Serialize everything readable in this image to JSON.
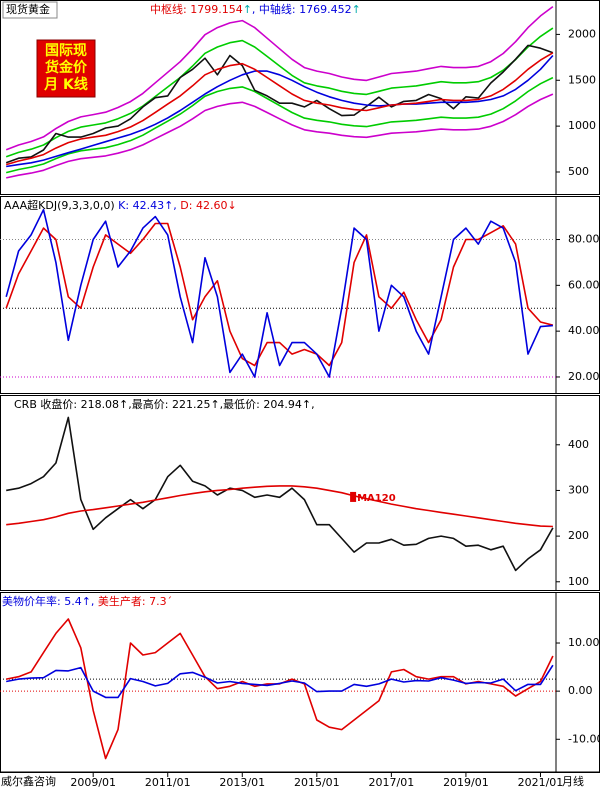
{
  "label": "现货黄金",
  "badge": [
    "国际现",
    "货金价",
    "月 K线"
  ],
  "source": "威尔鑫咨询",
  "period_label": "月线",
  "xlim": [
    "2006/07",
    "2021/06"
  ],
  "xticks": [
    "2009/01",
    "2011/01",
    "2013/01",
    "2015/01",
    "2017/01",
    "2019/01",
    "2021/01"
  ],
  "chart_data": [
    {
      "type": "line",
      "header": [
        {
          "text": "中枢线: 1799.154",
          "color": "#e00000"
        },
        {
          "text": "↑",
          "color": "#00aaaa"
        },
        {
          "text": ", 中轴线: 1769.452",
          "color": "#0000dd"
        },
        {
          "text": "↑",
          "color": "#00aaaa"
        }
      ],
      "x": [
        "2006/09",
        "2007/01",
        "2007/05",
        "2007/09",
        "2008/01",
        "2008/05",
        "2008/09",
        "2009/01",
        "2009/05",
        "2009/09",
        "2010/01",
        "2010/05",
        "2010/09",
        "2011/01",
        "2011/05",
        "2011/09",
        "2012/01",
        "2012/05",
        "2012/09",
        "2013/01",
        "2013/05",
        "2013/09",
        "2014/01",
        "2014/05",
        "2014/09",
        "2015/01",
        "2015/05",
        "2015/09",
        "2016/01",
        "2016/05",
        "2016/09",
        "2017/01",
        "2017/05",
        "2017/09",
        "2018/01",
        "2018/05",
        "2018/09",
        "2019/01",
        "2019/05",
        "2019/09",
        "2020/01",
        "2020/05",
        "2020/09",
        "2021/01",
        "2021/05"
      ],
      "ylim": [
        260,
        2375
      ],
      "yticks": [
        500,
        1000,
        1500,
        2000
      ],
      "series": [
        {
          "color": "#cc00cc",
          "values": [
            742,
            794,
            832,
            883,
            973,
            1050,
            1101,
            1126,
            1152,
            1203,
            1267,
            1357,
            1472,
            1587,
            1702,
            1843,
            1997,
            2074,
            2125,
            2150,
            2074,
            1958,
            1843,
            1728,
            1638,
            1600,
            1574,
            1536,
            1510,
            1498,
            1536,
            1574,
            1587,
            1600,
            1626,
            1651,
            1638,
            1638,
            1651,
            1702,
            1792,
            1920,
            2074,
            2202,
            2303
          ]
        },
        {
          "color": "#cc00cc",
          "values": [
            435,
            465,
            488,
            518,
            570,
            615,
            645,
            660,
            675,
            705,
            743,
            795,
            863,
            930,
            998,
            1080,
            1170,
            1215,
            1245,
            1260,
            1215,
            1148,
            1080,
            1013,
            960,
            938,
            923,
            900,
            885,
            878,
            900,
            923,
            930,
            938,
            953,
            968,
            960,
            960,
            968,
            998,
            1050,
            1125,
            1215,
            1290,
            1349
          ]
        },
        {
          "color": "#00cc00",
          "values": [
            667,
            713,
            748,
            794,
            874,
            943,
            989,
            1012,
            1035,
            1081,
            1139,
            1219,
            1323,
            1426,
            1530,
            1656,
            1794,
            1863,
            1909,
            1932,
            1863,
            1760,
            1656,
            1553,
            1472,
            1438,
            1415,
            1380,
            1357,
            1346,
            1380,
            1415,
            1426,
            1438,
            1461,
            1484,
            1472,
            1472,
            1484,
            1530,
            1610,
            1725,
            1863,
            1978,
            2069
          ]
        },
        {
          "color": "#00cc00",
          "values": [
            493,
            527,
            553,
            587,
            646,
            697,
            731,
            748,
            765,
            799,
            842,
            901,
            978,
            1054,
            1131,
            1224,
            1326,
            1377,
            1411,
            1428,
            1377,
            1301,
            1224,
            1148,
            1088,
            1063,
            1046,
            1020,
            1003,
            995,
            1020,
            1046,
            1054,
            1063,
            1080,
            1097,
            1088,
            1088,
            1097,
            1131,
            1190,
            1275,
            1377,
            1462,
            1529
          ]
        },
        {
          "color": "#111111",
          "values": [
            600,
            650,
            665,
            740,
            920,
            880,
            880,
            920,
            980,
            1000,
            1080,
            1210,
            1310,
            1330,
            1530,
            1620,
            1740,
            1560,
            1770,
            1660,
            1390,
            1330,
            1250,
            1250,
            1210,
            1280,
            1190,
            1115,
            1120,
            1215,
            1315,
            1210,
            1270,
            1280,
            1345,
            1300,
            1190,
            1320,
            1305,
            1470,
            1590,
            1730,
            1880,
            1850,
            1800
          ]
        },
        {
          "color": "#0000dd",
          "values": [
            560,
            580,
            600,
            630,
            670,
            710,
            750,
            790,
            830,
            870,
            910,
            960,
            1020,
            1090,
            1170,
            1260,
            1350,
            1430,
            1500,
            1560,
            1600,
            1600,
            1560,
            1500,
            1430,
            1370,
            1320,
            1280,
            1250,
            1230,
            1220,
            1230,
            1240,
            1240,
            1250,
            1260,
            1260,
            1260,
            1270,
            1290,
            1330,
            1400,
            1500,
            1620,
            1769.452
          ]
        },
        {
          "color": "#e00000",
          "values": [
            580,
            620,
            650,
            690,
            760,
            820,
            860,
            880,
            900,
            940,
            990,
            1060,
            1150,
            1240,
            1330,
            1440,
            1560,
            1620,
            1660,
            1680,
            1620,
            1530,
            1440,
            1350,
            1280,
            1250,
            1230,
            1200,
            1180,
            1170,
            1200,
            1230,
            1240,
            1250,
            1270,
            1290,
            1280,
            1280,
            1290,
            1330,
            1400,
            1500,
            1620,
            1720,
            1799.154
          ]
        }
      ]
    },
    {
      "type": "line",
      "header": [
        {
          "text": "AAA超KDJ(9,3,3,0,0)",
          "color": "#000000"
        },
        {
          "text": " K: 42.43↑,",
          "color": "#0000dd"
        },
        {
          "text": " D: 42.60↓",
          "color": "#e00000"
        }
      ],
      "x": [
        "2006/09",
        "2007/01",
        "2007/05",
        "2007/09",
        "2008/01",
        "2008/05",
        "2008/09",
        "2009/01",
        "2009/05",
        "2009/09",
        "2010/01",
        "2010/05",
        "2010/09",
        "2011/01",
        "2011/05",
        "2011/09",
        "2012/01",
        "2012/05",
        "2012/09",
        "2013/01",
        "2013/05",
        "2013/09",
        "2014/01",
        "2014/05",
        "2014/09",
        "2015/01",
        "2015/05",
        "2015/09",
        "2016/01",
        "2016/05",
        "2016/09",
        "2017/01",
        "2017/05",
        "2017/09",
        "2018/01",
        "2018/05",
        "2018/09",
        "2019/01",
        "2019/05",
        "2019/09",
        "2020/01",
        "2020/05",
        "2020/09",
        "2021/01",
        "2021/05"
      ],
      "ylim": [
        13,
        99
      ],
      "yticks": [
        {
          "value": 20,
          "label": "20.00"
        },
        {
          "value": 40,
          "label": "40.00"
        },
        {
          "value": 60,
          "label": "60.00"
        },
        {
          "value": 80,
          "label": "80.00"
        }
      ],
      "hlines": [
        {
          "value": 80,
          "color": "#888888"
        },
        {
          "value": 50,
          "color": "#000000"
        },
        {
          "value": 20,
          "color": "#cc00cc"
        }
      ],
      "series": [
        {
          "color": "#e00000",
          "values": [
            50,
            65,
            75,
            85,
            80,
            55,
            50,
            68,
            82,
            78,
            74,
            80,
            87,
            87,
            68,
            45,
            55,
            62,
            40,
            28,
            25,
            35,
            35,
            30,
            32,
            30,
            25,
            35,
            70,
            82,
            55,
            50,
            57,
            45,
            35,
            45,
            68,
            80,
            80,
            83,
            86,
            78,
            50,
            44,
            42.6
          ]
        },
        {
          "color": "#0000dd",
          "values": [
            55,
            75,
            82,
            93,
            70,
            36,
            60,
            80,
            88,
            68,
            75,
            85,
            90,
            82,
            55,
            35,
            72,
            55,
            22,
            30,
            20,
            48,
            25,
            35,
            35,
            30,
            20,
            50,
            85,
            80,
            40,
            60,
            55,
            40,
            30,
            55,
            80,
            85,
            78,
            88,
            85,
            70,
            30,
            42,
            42.43
          ]
        }
      ]
    },
    {
      "type": "line",
      "header": [
        {
          "text": "CRB 收盘价: 218.08↑,最高价: 221.25↑,最低价: 204.94↑,",
          "color": "#000000"
        }
      ],
      "x": [
        "2006/09",
        "2007/01",
        "2007/05",
        "2007/09",
        "2008/01",
        "2008/05",
        "2008/09",
        "2009/01",
        "2009/05",
        "2009/09",
        "2010/01",
        "2010/05",
        "2010/09",
        "2011/01",
        "2011/05",
        "2011/09",
        "2012/01",
        "2012/05",
        "2012/09",
        "2013/01",
        "2013/05",
        "2013/09",
        "2014/01",
        "2014/05",
        "2014/09",
        "2015/01",
        "2015/05",
        "2015/09",
        "2016/01",
        "2016/05",
        "2016/09",
        "2017/01",
        "2017/05",
        "2017/09",
        "2018/01",
        "2018/05",
        "2018/09",
        "2019/01",
        "2019/05",
        "2019/09",
        "2020/01",
        "2020/05",
        "2020/09",
        "2021/01",
        "2021/05"
      ],
      "ylim": [
        82,
        509
      ],
      "yticks": [
        100,
        200,
        300,
        400
      ],
      "series": [
        {
          "color": "#111111",
          "values": [
            300,
            305,
            315,
            330,
            360,
            460,
            280,
            215,
            240,
            260,
            280,
            260,
            280,
            330,
            355,
            320,
            310,
            290,
            305,
            300,
            285,
            290,
            285,
            305,
            280,
            225,
            225,
            195,
            165,
            185,
            185,
            193,
            180,
            182,
            195,
            200,
            195,
            178,
            180,
            170,
            178,
            125,
            150,
            170,
            218.08
          ]
        },
        {
          "name": "MA120",
          "color": "#e00000",
          "values": [
            225,
            228,
            232,
            236,
            242,
            250,
            255,
            258,
            262,
            266,
            270,
            274,
            279,
            284,
            289,
            293,
            297,
            300,
            302,
            305,
            307,
            309,
            310,
            310,
            308,
            305,
            300,
            295,
            288,
            282,
            276,
            270,
            265,
            260,
            256,
            252,
            248,
            244,
            240,
            236,
            232,
            228,
            225,
            222,
            221
          ]
        }
      ]
    },
    {
      "type": "line",
      "header": [
        {
          "text": "美物价年率: 5.4↑,",
          "color": "#0000dd"
        },
        {
          "text": " 美生产者: 7.3´",
          "color": "#e00000"
        }
      ],
      "x": [
        "2006/09",
        "2007/01",
        "2007/05",
        "2007/09",
        "2008/01",
        "2008/05",
        "2008/09",
        "2009/01",
        "2009/05",
        "2009/09",
        "2010/01",
        "2010/05",
        "2010/09",
        "2011/01",
        "2011/05",
        "2011/09",
        "2012/01",
        "2012/05",
        "2012/09",
        "2013/01",
        "2013/05",
        "2013/09",
        "2014/01",
        "2014/05",
        "2014/09",
        "2015/01",
        "2015/05",
        "2015/09",
        "2016/01",
        "2016/05",
        "2016/09",
        "2017/01",
        "2017/05",
        "2017/09",
        "2018/01",
        "2018/05",
        "2018/09",
        "2019/01",
        "2019/05",
        "2019/09",
        "2020/01",
        "2020/05",
        "2020/09",
        "2021/01",
        "2021/05"
      ],
      "ylim": [
        -16.8,
        20.6
      ],
      "yticks": [
        {
          "value": -10,
          "label": "-10.00"
        },
        {
          "value": 0,
          "label": "0.00"
        },
        {
          "value": 10,
          "label": "10.00"
        }
      ],
      "hlines": [
        {
          "value": 2.5,
          "color": "#000000"
        },
        {
          "value": 0,
          "color": "#e00000"
        }
      ],
      "series": [
        {
          "color": "#e00000",
          "values": [
            2.5,
            3.0,
            4.0,
            8.0,
            12.0,
            15.0,
            9.0,
            -4.0,
            -14.0,
            -8.0,
            10.0,
            7.5,
            8.0,
            10.0,
            12.0,
            7.5,
            3.0,
            0.5,
            1.0,
            2.0,
            1.0,
            1.5,
            1.5,
            2.5,
            1.5,
            -6.0,
            -7.5,
            -8.0,
            -6.0,
            -4.0,
            -2.0,
            4.0,
            4.5,
            3.0,
            2.5,
            3.0,
            3.0,
            1.5,
            2.0,
            1.5,
            1.0,
            -1.0,
            0.5,
            2.0,
            7.3
          ]
        },
        {
          "color": "#0000dd",
          "values": [
            2.0,
            2.5,
            2.7,
            2.8,
            4.3,
            4.2,
            4.9,
            0.0,
            -1.3,
            -1.3,
            2.6,
            2.0,
            1.1,
            1.6,
            3.6,
            3.9,
            2.9,
            1.7,
            2.0,
            1.6,
            1.4,
            1.2,
            1.6,
            2.1,
            1.7,
            -0.1,
            0.0,
            0.0,
            1.4,
            1.0,
            1.5,
            2.5,
            1.9,
            2.2,
            2.1,
            2.8,
            2.3,
            1.6,
            1.8,
            1.7,
            2.5,
            0.1,
            1.4,
            1.4,
            5.4
          ]
        }
      ]
    }
  ]
}
